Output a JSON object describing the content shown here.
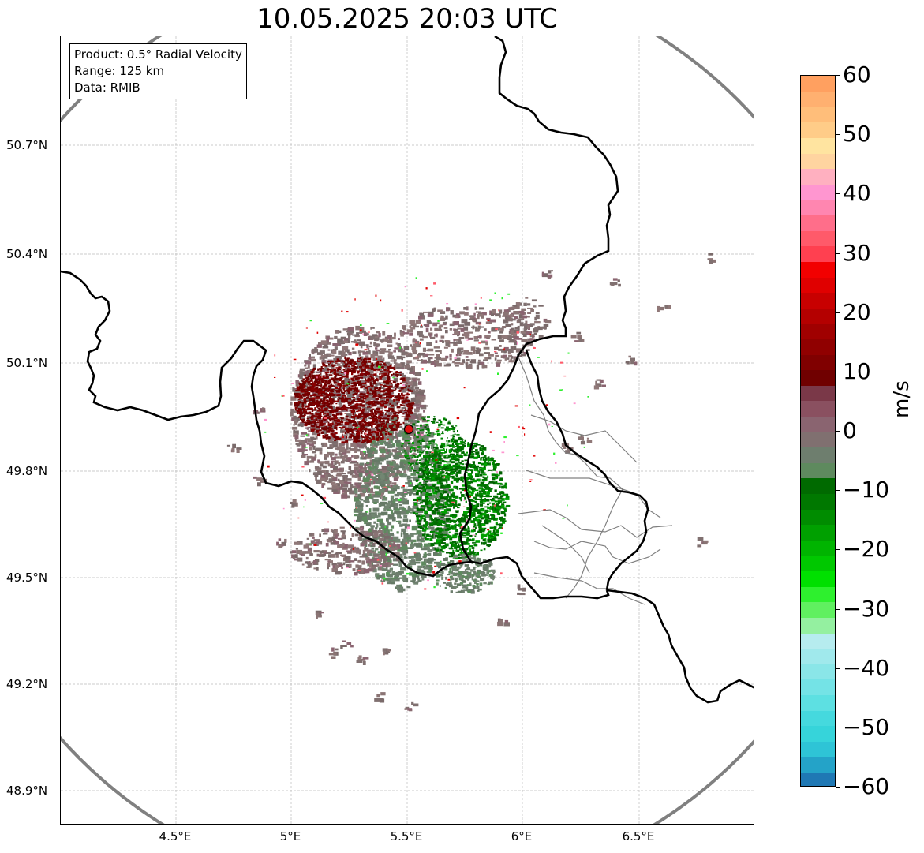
{
  "title": "10.05.2025 20:03 UTC",
  "info": {
    "product": "Product: 0.5° Radial Velocity",
    "range": "Range: 125 km",
    "data": "Data: RMIB"
  },
  "map": {
    "lat_ticks": [
      "50.7°N",
      "50.4°N",
      "50.1°N",
      "49.8°N",
      "49.5°N",
      "49.2°N",
      "48.9°N"
    ],
    "lon_ticks": [
      "4.5°E",
      "5°E",
      "5.5°E",
      "6°E",
      "6.5°E"
    ],
    "radar_site": {
      "lat": 49.91,
      "lon": 5.505,
      "marker_color": "#dd1111"
    },
    "range_ring_color": "#808080",
    "border_color": "#000000",
    "admin_color": "#808080",
    "grid": true
  },
  "colorbar": {
    "label": "m/s",
    "ticks": [
      "60",
      "50",
      "40",
      "30",
      "20",
      "10",
      "0",
      "−10",
      "−20",
      "−30",
      "−40",
      "−50",
      "−60"
    ],
    "min": -60,
    "max": 60,
    "colors": [
      "#1f78b4",
      "#24a3c8",
      "#2ec4d6",
      "#36d4da",
      "#45d9de",
      "#5de0e2",
      "#74e3e6",
      "#8ae6e8",
      "#a0e9ec",
      "#b6ecef",
      "#94f0a0",
      "#60f060",
      "#2ef02e",
      "#00e000",
      "#00c800",
      "#00b400",
      "#00a000",
      "#008c00",
      "#007800",
      "#006a00",
      "#5e8a5e",
      "#6e7e6e",
      "#807070",
      "#8a6470",
      "#8a5060",
      "#7a3848",
      "#700000",
      "#800000",
      "#900000",
      "#a00000",
      "#b40000",
      "#c80000",
      "#e00000",
      "#f20000",
      "#ff4050",
      "#ff5a6a",
      "#ff6e8a",
      "#ff86b0",
      "#ff96d0",
      "#ffb0c0",
      "#ffd4a0",
      "#ffe4a0",
      "#ffcc88",
      "#ffbe7a",
      "#ffb070",
      "#ffa060"
    ]
  }
}
